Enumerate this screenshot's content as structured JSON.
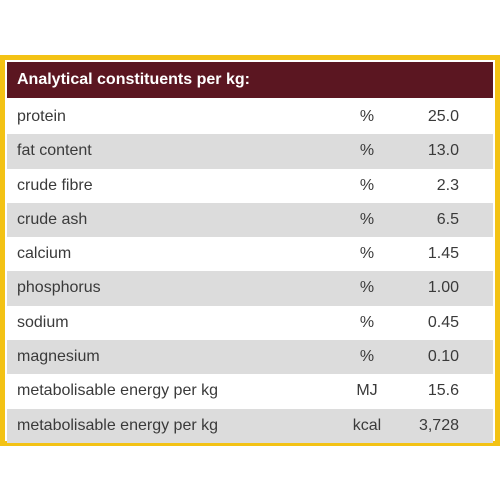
{
  "table": {
    "title": "Analytical constituents per kg:",
    "rows": [
      [
        "protein",
        "%",
        "25.0"
      ],
      [
        "fat content",
        "%",
        "13.0"
      ],
      [
        "crude fibre",
        "%",
        "2.3"
      ],
      [
        "crude ash",
        "%",
        "6.5"
      ],
      [
        "calcium",
        "%",
        "1.45"
      ],
      [
        "phosphorus",
        "%",
        "1.00"
      ],
      [
        "sodium",
        "%",
        "0.45"
      ],
      [
        "magnesium",
        "%",
        "0.10"
      ],
      [
        "metabolisable energy per kg",
        "MJ",
        "15.6"
      ],
      [
        "metabolisable energy per kg",
        "kcal",
        "3,728"
      ]
    ]
  }
}
